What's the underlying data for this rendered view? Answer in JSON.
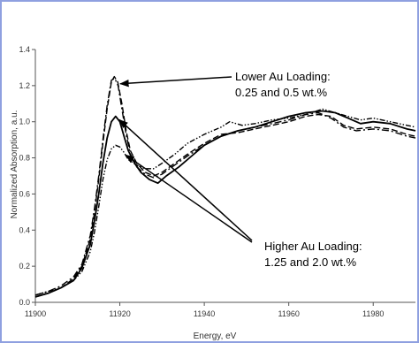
{
  "chart_data": {
    "type": "line",
    "title": "",
    "xlabel": "Energy, eV",
    "ylabel": "Normalized Absorption, a.u.",
    "xlim": [
      11900,
      11990
    ],
    "ylim": [
      0,
      1.4
    ],
    "xticks": [
      "11900",
      "11920",
      "11940",
      "11960",
      "11980"
    ],
    "yticks": [
      "0.0",
      "0.2",
      "0.4",
      "0.6",
      "0.8",
      "1.0",
      "1.2",
      "1.4"
    ],
    "grid": false,
    "legend": "none",
    "colors": {
      "background": "#ffffff",
      "frame": "#8fa0e0",
      "lines": "#000000",
      "axes": "#555555"
    },
    "series": [
      {
        "style": "dash",
        "group": "lower",
        "points": [
          [
            11900,
            0.03
          ],
          [
            11903,
            0.05
          ],
          [
            11906,
            0.08
          ],
          [
            11909,
            0.13
          ],
          [
            11911,
            0.2
          ],
          [
            11913,
            0.35
          ],
          [
            11914,
            0.5
          ],
          [
            11915,
            0.68
          ],
          [
            11916,
            0.88
          ],
          [
            11917,
            1.07
          ],
          [
            11918,
            1.22
          ],
          [
            11918.7,
            1.25
          ],
          [
            11919.5,
            1.22
          ],
          [
            11920.5,
            1.1
          ],
          [
            11921.5,
            0.95
          ],
          [
            11922.5,
            0.84
          ],
          [
            11924,
            0.77
          ],
          [
            11926,
            0.72
          ],
          [
            11928,
            0.7
          ],
          [
            11930,
            0.72
          ],
          [
            11933,
            0.77
          ],
          [
            11936,
            0.82
          ],
          [
            11940,
            0.88
          ],
          [
            11944,
            0.93
          ],
          [
            11948,
            0.94
          ],
          [
            11952,
            0.96
          ],
          [
            11956,
            0.98
          ],
          [
            11960,
            1.0
          ],
          [
            11964,
            1.03
          ],
          [
            11967,
            1.04
          ],
          [
            11970,
            1.03
          ],
          [
            11973,
            0.98
          ],
          [
            11976,
            0.96
          ],
          [
            11980,
            0.97
          ],
          [
            11984,
            0.96
          ],
          [
            11988,
            0.93
          ],
          [
            11990,
            0.92
          ]
        ]
      },
      {
        "style": "dash-dot",
        "group": "lower",
        "points": [
          [
            11900,
            0.04
          ],
          [
            11903,
            0.06
          ],
          [
            11906,
            0.09
          ],
          [
            11909,
            0.14
          ],
          [
            11911,
            0.21
          ],
          [
            11913,
            0.37
          ],
          [
            11914,
            0.52
          ],
          [
            11915,
            0.7
          ],
          [
            11916,
            0.9
          ],
          [
            11917,
            1.09
          ],
          [
            11918,
            1.23
          ],
          [
            11918.8,
            1.24
          ],
          [
            11919.6,
            1.2
          ],
          [
            11920.5,
            1.07
          ],
          [
            11921.5,
            0.93
          ],
          [
            11922.5,
            0.82
          ],
          [
            11924,
            0.75
          ],
          [
            11926,
            0.71
          ],
          [
            11928,
            0.69
          ],
          [
            11930,
            0.71
          ],
          [
            11933,
            0.76
          ],
          [
            11936,
            0.81
          ],
          [
            11940,
            0.87
          ],
          [
            11944,
            0.92
          ],
          [
            11948,
            0.95
          ],
          [
            11952,
            0.97
          ],
          [
            11956,
            0.99
          ],
          [
            11960,
            1.01
          ],
          [
            11964,
            1.04
          ],
          [
            11967,
            1.05
          ],
          [
            11970,
            1.02
          ],
          [
            11973,
            0.97
          ],
          [
            11976,
            0.95
          ],
          [
            11980,
            0.96
          ],
          [
            11984,
            0.95
          ],
          [
            11988,
            0.92
          ],
          [
            11990,
            0.91
          ]
        ]
      },
      {
        "style": "solid",
        "group": "higher",
        "points": [
          [
            11900,
            0.03
          ],
          [
            11903,
            0.05
          ],
          [
            11906,
            0.08
          ],
          [
            11909,
            0.12
          ],
          [
            11911,
            0.19
          ],
          [
            11913,
            0.32
          ],
          [
            11914,
            0.45
          ],
          [
            11915,
            0.6
          ],
          [
            11916,
            0.77
          ],
          [
            11917,
            0.91
          ],
          [
            11918,
            1.0
          ],
          [
            11919,
            1.03
          ],
          [
            11920,
            1.0
          ],
          [
            11921,
            0.92
          ],
          [
            11922,
            0.84
          ],
          [
            11923.5,
            0.77
          ],
          [
            11925,
            0.72
          ],
          [
            11927,
            0.68
          ],
          [
            11929,
            0.66
          ],
          [
            11931,
            0.7
          ],
          [
            11934,
            0.75
          ],
          [
            11937,
            0.81
          ],
          [
            11940,
            0.87
          ],
          [
            11944,
            0.92
          ],
          [
            11948,
            0.95
          ],
          [
            11952,
            0.97
          ],
          [
            11956,
            1.0
          ],
          [
            11960,
            1.03
          ],
          [
            11964,
            1.05
          ],
          [
            11968,
            1.06
          ],
          [
            11971,
            1.05
          ],
          [
            11974,
            1.02
          ],
          [
            11977,
            0.99
          ],
          [
            11980,
            1.0
          ],
          [
            11984,
            0.99
          ],
          [
            11988,
            0.96
          ],
          [
            11990,
            0.95
          ]
        ]
      },
      {
        "style": "dash-dot-dot",
        "group": "higher",
        "points": [
          [
            11900,
            0.04
          ],
          [
            11903,
            0.06
          ],
          [
            11906,
            0.08
          ],
          [
            11909,
            0.12
          ],
          [
            11911,
            0.17
          ],
          [
            11913,
            0.28
          ],
          [
            11914,
            0.39
          ],
          [
            11915,
            0.53
          ],
          [
            11916,
            0.68
          ],
          [
            11917,
            0.79
          ],
          [
            11918,
            0.85
          ],
          [
            11919,
            0.87
          ],
          [
            11920,
            0.86
          ],
          [
            11921,
            0.83
          ],
          [
            11922,
            0.79
          ],
          [
            11924,
            0.76
          ],
          [
            11926,
            0.74
          ],
          [
            11928,
            0.74
          ],
          [
            11930,
            0.77
          ],
          [
            11933,
            0.82
          ],
          [
            11936,
            0.88
          ],
          [
            11940,
            0.93
          ],
          [
            11944,
            0.97
          ],
          [
            11946,
            1.0
          ],
          [
            11949,
            0.98
          ],
          [
            11952,
            0.99
          ],
          [
            11956,
            1.01
          ],
          [
            11960,
            1.02
          ],
          [
            11964,
            1.04
          ],
          [
            11968,
            1.07
          ],
          [
            11971,
            1.05
          ],
          [
            11974,
            1.03
          ],
          [
            11977,
            1.01
          ],
          [
            11980,
            1.02
          ],
          [
            11984,
            1.0
          ],
          [
            11988,
            0.98
          ],
          [
            11990,
            0.97
          ]
        ]
      }
    ],
    "annotations": [
      {
        "group": "lower",
        "lines": [
          "Lower Au Loading:",
          "0.25 and 0.5 wt.%"
        ]
      },
      {
        "group": "higher",
        "lines": [
          "Higher Au Loading:",
          "1.25 and 2.0 wt.%"
        ]
      }
    ]
  }
}
